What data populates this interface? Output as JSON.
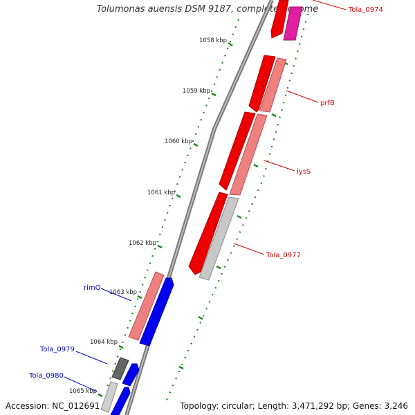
{
  "title": "Tolumonas auensis DSM 9187, complete genome",
  "footer": {
    "accession": "Accession: NC_012691",
    "summary": "Topology: circular; Length: 3,471,292 bp; Genes: 3,246"
  },
  "scale": {
    "ticks": [
      "1058 kbp",
      "1059 kbp",
      "1060 kbp",
      "1061 kbp",
      "1062 kbp",
      "1063 kbp",
      "1064 kbp",
      "1065 kbp"
    ]
  },
  "gene_labels": [
    {
      "id": "Tola_0974",
      "text": "Tola_0974",
      "strand": "forward"
    },
    {
      "id": "prfB",
      "text": "prfB",
      "strand": "forward"
    },
    {
      "id": "lysS",
      "text": "lysS",
      "strand": "forward"
    },
    {
      "id": "Tola_0977",
      "text": "Tola_0977",
      "strand": "forward"
    },
    {
      "id": "rimO",
      "text": "rimO",
      "strand": "reverse"
    },
    {
      "id": "Tola_0979",
      "text": "Tola_0979",
      "strand": "reverse"
    },
    {
      "id": "Tola_0980",
      "text": "Tola_0980",
      "strand": "reverse"
    }
  ],
  "colors": {
    "forward_label": "#cc0000",
    "reverse_label": "#0000cc",
    "red": "#ee0000",
    "pink": "#ee8080",
    "magenta": "#e020a0",
    "grey": "#c0c0c0",
    "dark_grey": "#606060",
    "blue": "#0000ee",
    "tick": "#1a8a1a",
    "backbone": "#8a8a8a"
  }
}
